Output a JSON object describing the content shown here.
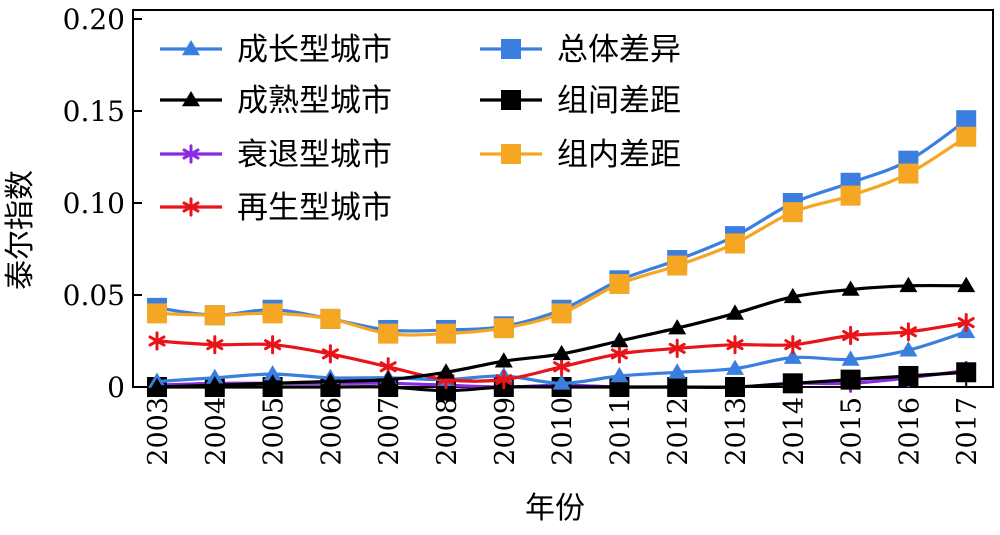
{
  "chart_data": {
    "type": "line",
    "title": "",
    "xlabel": "年份",
    "ylabel": "泰尔指数",
    "x": [
      "2003",
      "2004",
      "2005",
      "2006",
      "2007",
      "2008",
      "2009",
      "2010",
      "2011",
      "2012",
      "2013",
      "2014",
      "2015",
      "2016",
      "2017"
    ],
    "ylim": [
      0,
      0.2
    ],
    "yticks": [
      0,
      0.05,
      0.1,
      0.15,
      0.2
    ],
    "ytick_labels": [
      "0",
      "0.05",
      "0.10",
      "0.15",
      "0.20"
    ],
    "grid": false,
    "legend_position": "top-left",
    "series": [
      {
        "name": "成长型城市",
        "marker": "triangle",
        "color": "#3a7fe0",
        "values": [
          0.003,
          0.005,
          0.007,
          0.005,
          0.005,
          0.004,
          0.006,
          0.002,
          0.006,
          0.008,
          0.01,
          0.016,
          0.015,
          0.02,
          0.03
        ]
      },
      {
        "name": "成熟型城市",
        "marker": "triangle",
        "color": "#000000",
        "values": [
          0.0,
          0.001,
          0.002,
          0.003,
          0.004,
          0.008,
          0.014,
          0.018,
          0.025,
          0.032,
          0.04,
          0.049,
          0.053,
          0.055,
          0.055
        ]
      },
      {
        "name": "衰退型城市",
        "marker": "asterisk",
        "color": "#8a2be2",
        "values": [
          0.001,
          0.002,
          0.002,
          0.002,
          0.002,
          0.001,
          0.0,
          0.001,
          0.0,
          0.0,
          0.0,
          0.002,
          0.002,
          0.005,
          0.009
        ]
      },
      {
        "name": "再生型城市",
        "marker": "asterisk",
        "color": "#e8141a",
        "values": [
          0.025,
          0.023,
          0.023,
          0.018,
          0.011,
          0.004,
          0.004,
          0.011,
          0.018,
          0.021,
          0.023,
          0.023,
          0.028,
          0.03,
          0.035
        ]
      },
      {
        "name": "总体差异",
        "marker": "square",
        "color": "#3a7fe0",
        "values": [
          0.043,
          0.039,
          0.042,
          0.037,
          0.031,
          0.031,
          0.033,
          0.042,
          0.058,
          0.069,
          0.082,
          0.1,
          0.111,
          0.123,
          0.145
        ]
      },
      {
        "name": "组间差距",
        "marker": "square",
        "color": "#000000",
        "values": [
          0.0,
          0.0,
          0.0,
          0.0,
          0.0,
          -0.002,
          0.0,
          0.0,
          0.0,
          0.0,
          0.0,
          0.002,
          0.004,
          0.006,
          0.008
        ]
      },
      {
        "name": "组内差距",
        "marker": "square",
        "color": "#f5a623",
        "values": [
          0.04,
          0.039,
          0.04,
          0.037,
          0.029,
          0.029,
          0.032,
          0.04,
          0.056,
          0.066,
          0.078,
          0.095,
          0.104,
          0.116,
          0.136
        ]
      }
    ]
  }
}
